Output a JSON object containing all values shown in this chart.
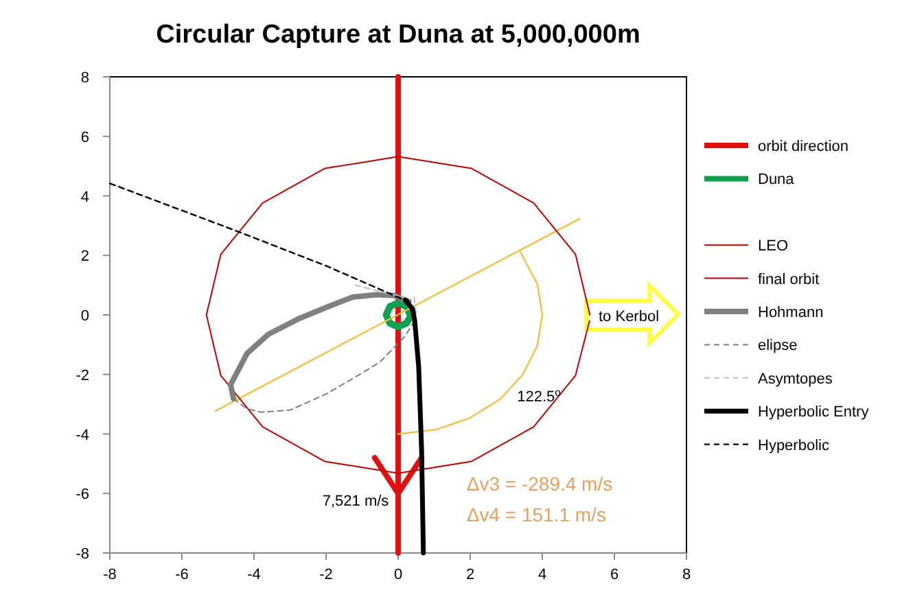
{
  "chart_data": {
    "type": "line",
    "title": "Circular Capture at Duna  at 5,000,000m",
    "xlim": [
      -8,
      8
    ],
    "xticks": [
      -8,
      -6,
      -4,
      -2,
      0,
      2,
      4,
      6,
      8
    ],
    "ylim": [
      -8,
      8
    ],
    "yticks": [
      -8,
      -6,
      -4,
      -2,
      0,
      2,
      4,
      6,
      8
    ],
    "grid": false,
    "legend": "right",
    "marker": "none",
    "series": [
      {
        "name": "orbit direction",
        "color": "#e01010",
        "x": [
          0,
          0,
          null,
          -0.65,
          0,
          0.65
        ],
        "values": [
          8,
          -8,
          null,
          -4.8,
          -6,
          -4.8
        ]
      },
      {
        "name": "Duna",
        "color": "#10a050",
        "x": [
          0.33,
          0.23,
          0,
          -0.23,
          -0.33,
          -0.23,
          0,
          0.23,
          0.32
        ],
        "values": [
          0,
          0.28,
          0.4,
          0.28,
          0,
          -0.28,
          -0.4,
          -0.28,
          -0.1
        ]
      },
      {
        "color": "#f0c040",
        "x": [
          -5.07,
          5.03,
          null,
          3.39,
          3.86,
          4,
          3.86,
          3.46,
          2.83,
          2,
          1.04,
          0
        ],
        "values": [
          -3.23,
          3.23,
          null,
          2.12,
          1.04,
          0,
          -1.04,
          -2,
          -2.83,
          -3.46,
          -3.86,
          -4
        ]
      },
      {
        "name": "LEO",
        "color": "#c00000",
        "x": [
          5.32,
          4.92,
          3.76,
          2.04,
          0,
          -2.04,
          -3.76,
          -4.92,
          -5.32,
          -4.92,
          -3.76,
          -2.04,
          0,
          2.04,
          3.76,
          4.92,
          5.31
        ],
        "values": [
          0,
          2.04,
          3.76,
          4.92,
          5.32,
          4.92,
          3.76,
          2.04,
          0,
          -2.04,
          -3.76,
          -4.92,
          -5.32,
          -4.92,
          -3.76,
          -2.04,
          -0.2
        ]
      },
      {
        "name": "final orbit",
        "color": "#c00000"
      },
      {
        "name": "Hohmann",
        "color": "#808080",
        "x": [
          0.3,
          -0.11,
          -0.6,
          -1.26,
          -1.9,
          -2.78,
          -3.6,
          -4.19,
          -4.65,
          -4.57
        ],
        "values": [
          0.45,
          0.65,
          0.68,
          0.6,
          0.3,
          -0.14,
          -0.65,
          -1.29,
          -2.35,
          -2.81
        ]
      },
      {
        "name": "elipse",
        "color": "#808080",
        "line_style": "dashed",
        "x": [
          -4.57,
          -4.2,
          -3.81,
          -3,
          -2.02,
          -1.2,
          -0.5,
          -0.26,
          0.2,
          0.45,
          0.5
        ],
        "values": [
          -2.81,
          -3.15,
          -3.27,
          -3.2,
          -2.67,
          -2.1,
          -1.58,
          -1.28,
          -0.7,
          -0.2,
          0.2
        ]
      },
      {
        "name": "Asymtopes",
        "color": "#c0c0c0",
        "line_style": "dashed",
        "x": [
          -1.2,
          0.3,
          null,
          0.45,
          0.55
        ],
        "values": [
          1.0,
          0.55,
          null,
          0.6,
          -1.5
        ]
      },
      {
        "name": "Hyperbolic Entry",
        "color": "#000000",
        "x": [
          0.2,
          0.4,
          0.46,
          0.57,
          0.65,
          0.7
        ],
        "values": [
          0.5,
          0.2,
          -0.2,
          -1.75,
          -4.5,
          -8
        ]
      },
      {
        "name": "Hyperbolic",
        "color": "#000000",
        "line_style": "dashed",
        "x": [
          -8,
          -4.57,
          -2,
          -0.11,
          0.25
        ],
        "values": [
          4.42,
          2.86,
          1.65,
          0.65,
          0.45
        ]
      }
    ],
    "annotations": [
      "to Kerbol",
      "122.5$^{o}$",
      "7,521 m/s",
      "Δv3 = -289.4 m/s",
      "Δv4 = 151.1 m/s"
    ]
  }
}
